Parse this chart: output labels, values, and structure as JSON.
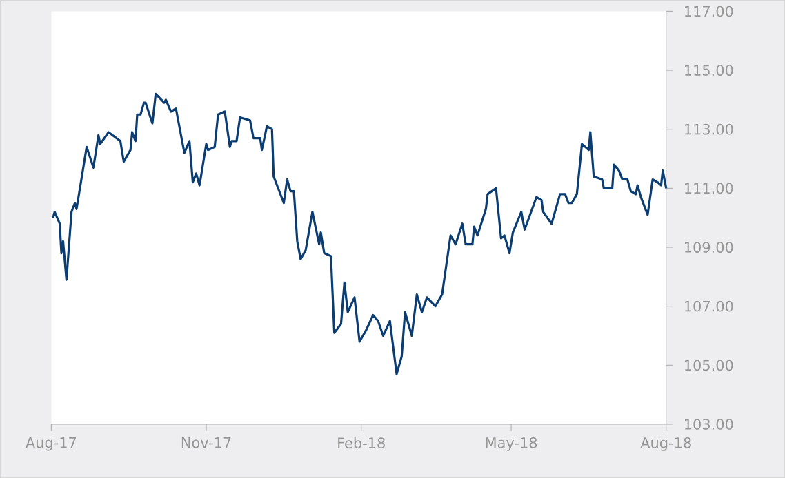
{
  "chart_data": {
    "type": "line",
    "x": [
      "2017-08-02",
      "2017-08-03",
      "2017-08-06",
      "2017-08-07",
      "2017-08-08",
      "2017-08-10",
      "2017-08-13",
      "2017-08-15",
      "2017-08-16",
      "2017-08-18",
      "2017-08-20",
      "2017-08-22",
      "2017-08-26",
      "2017-08-29",
      "2017-08-30",
      "2017-09-04",
      "2017-09-11",
      "2017-09-13",
      "2017-09-17",
      "2017-09-18",
      "2017-09-20",
      "2017-09-21",
      "2017-09-23",
      "2017-09-25",
      "2017-09-26",
      "2017-09-30",
      "2017-10-02",
      "2017-10-07",
      "2017-10-08",
      "2017-10-11",
      "2017-10-14",
      "2017-10-17",
      "2017-10-19",
      "2017-10-22",
      "2017-10-24",
      "2017-10-26",
      "2017-10-28",
      "2017-11-01",
      "2017-11-02",
      "2017-11-06",
      "2017-11-08",
      "2017-11-12",
      "2017-11-15",
      "2017-11-16",
      "2017-11-19",
      "2017-11-21",
      "2017-11-27",
      "2017-11-29",
      "2017-12-03",
      "2017-12-04",
      "2017-12-07",
      "2017-12-10",
      "2017-12-11",
      "2017-12-17",
      "2017-12-19",
      "2017-12-21",
      "2017-12-23",
      "2017-12-25",
      "2017-12-27",
      "2017-12-30",
      "2018-01-03",
      "2018-01-07",
      "2018-01-08",
      "2018-01-10",
      "2018-01-14",
      "2018-01-16",
      "2018-01-20",
      "2018-01-22",
      "2018-01-24",
      "2018-01-28",
      "2018-01-31",
      "2018-02-04",
      "2018-02-08",
      "2018-02-11",
      "2018-02-14",
      "2018-02-18",
      "2018-02-22",
      "2018-02-25",
      "2018-02-27",
      "2018-03-03",
      "2018-03-06",
      "2018-03-09",
      "2018-03-12",
      "2018-03-17",
      "2018-03-21",
      "2018-03-26",
      "2018-03-29",
      "2018-04-02",
      "2018-04-04",
      "2018-04-08",
      "2018-04-09",
      "2018-04-11",
      "2018-04-16",
      "2018-04-17",
      "2018-04-22",
      "2018-04-25",
      "2018-04-27",
      "2018-04-30",
      "2018-05-02",
      "2018-05-07",
      "2018-05-09",
      "2018-05-16",
      "2018-05-19",
      "2018-05-20",
      "2018-05-25",
      "2018-05-30",
      "2018-06-02",
      "2018-06-04",
      "2018-06-06",
      "2018-06-09",
      "2018-06-12",
      "2018-06-16",
      "2018-06-17",
      "2018-06-19",
      "2018-06-24",
      "2018-06-25",
      "2018-06-30",
      "2018-07-01",
      "2018-07-04",
      "2018-07-06",
      "2018-07-09",
      "2018-07-11",
      "2018-07-14",
      "2018-07-15",
      "2018-07-17",
      "2018-07-21",
      "2018-07-24",
      "2018-07-27",
      "2018-07-29",
      "2018-07-30",
      "2018-08-01"
    ],
    "series": [
      {
        "color": "#0b3d72",
        "values": [
          110.0,
          110.2,
          109.8,
          108.8,
          109.2,
          107.9,
          110.2,
          110.5,
          110.3,
          111.0,
          111.7,
          112.4,
          111.7,
          112.8,
          112.5,
          112.9,
          112.6,
          111.9,
          112.3,
          112.9,
          112.6,
          113.5,
          113.5,
          113.9,
          113.9,
          113.2,
          114.2,
          113.9,
          114.0,
          113.6,
          113.7,
          112.8,
          112.2,
          112.6,
          111.2,
          111.5,
          111.1,
          112.5,
          112.3,
          112.4,
          113.5,
          113.6,
          112.4,
          112.6,
          112.6,
          113.4,
          113.3,
          112.7,
          112.7,
          112.3,
          113.1,
          113.0,
          111.4,
          110.5,
          111.3,
          110.9,
          110.9,
          109.2,
          108.6,
          108.9,
          110.2,
          109.1,
          109.5,
          108.8,
          108.7,
          106.1,
          106.4,
          107.8,
          106.8,
          107.3,
          105.8,
          106.2,
          106.7,
          106.5,
          106.0,
          106.5,
          104.7,
          105.3,
          106.8,
          106.0,
          107.4,
          106.8,
          107.3,
          107.0,
          107.4,
          109.4,
          109.1,
          109.8,
          109.1,
          109.1,
          109.7,
          109.4,
          110.3,
          110.8,
          111.0,
          109.3,
          109.4,
          108.8,
          109.5,
          110.2,
          109.6,
          110.7,
          110.6,
          110.2,
          109.8,
          110.8,
          110.8,
          110.5,
          110.5,
          110.8,
          112.5,
          112.3,
          112.9,
          111.4,
          111.3,
          111.0,
          111.0,
          111.8,
          111.6,
          111.3,
          111.3,
          110.9,
          110.8,
          111.1,
          110.7,
          110.1,
          111.3,
          111.2,
          111.1,
          111.6,
          111.0
        ]
      }
    ],
    "xlim": [
      "2017-08-01",
      "2018-08-01"
    ],
    "xticks": [
      {
        "value": "2017-08-01",
        "label": "Aug-17"
      },
      {
        "value": "2017-11-01",
        "label": "Nov-17"
      },
      {
        "value": "2018-02-01",
        "label": "Feb-18"
      },
      {
        "value": "2018-05-01",
        "label": "May-18"
      },
      {
        "value": "2018-08-01",
        "label": "Aug-18"
      }
    ],
    "ylim": [
      103,
      117
    ],
    "yticks": [
      {
        "value": 103,
        "label": "103.00"
      },
      {
        "value": 105,
        "label": "105.00"
      },
      {
        "value": 107,
        "label": "107.00"
      },
      {
        "value": 109,
        "label": "109.00"
      },
      {
        "value": 111,
        "label": "111.00"
      },
      {
        "value": 113,
        "label": "113.00"
      },
      {
        "value": 115,
        "label": "115.00"
      },
      {
        "value": 117,
        "label": "117.00"
      }
    ],
    "grid": false,
    "legend": false,
    "marker": "none",
    "line_style": "solid"
  }
}
